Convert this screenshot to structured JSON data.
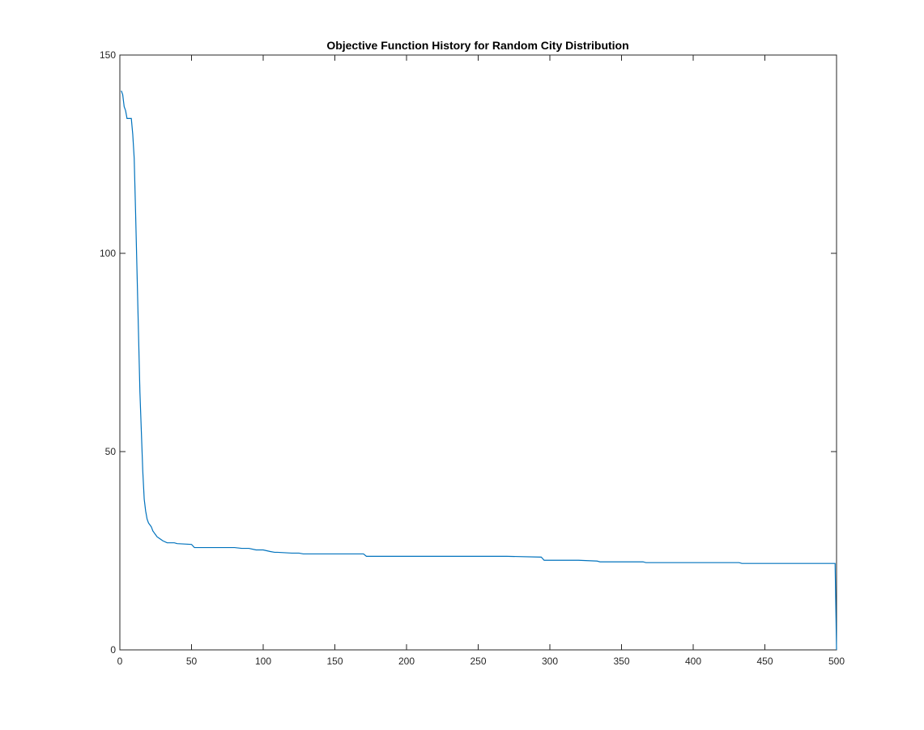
{
  "chart_data": {
    "type": "line",
    "title": "Objective Function History for Random City Distribution",
    "xlabel": "",
    "ylabel": "",
    "xlim": [
      0,
      500
    ],
    "ylim": [
      0,
      150
    ],
    "x_ticks": [
      "0",
      "50",
      "100",
      "150",
      "200",
      "250",
      "300",
      "350",
      "400",
      "450",
      "500"
    ],
    "y_ticks": [
      "0",
      "50",
      "100",
      "150"
    ],
    "grid": false,
    "legend": "none",
    "colors": {
      "line": "#0072BD",
      "axes": "#262626",
      "background": "#ffffff"
    },
    "series": [
      {
        "x": [
          1,
          2,
          3,
          4,
          5,
          6,
          7,
          8,
          9,
          10,
          11,
          12,
          13,
          14,
          15,
          16,
          17,
          18,
          19,
          20,
          21,
          22,
          23,
          24,
          25,
          26,
          28,
          30,
          33,
          38,
          40,
          50,
          52,
          60,
          80,
          85,
          90,
          95,
          100,
          105,
          108,
          110,
          120,
          125,
          128,
          140,
          160,
          170,
          172,
          200,
          250,
          270,
          294,
          296,
          320,
          333,
          335,
          360,
          365,
          367,
          400,
          432,
          434,
          460,
          499,
          500
        ],
        "y": [
          141,
          140,
          137,
          136,
          134,
          134,
          134,
          134,
          130,
          124,
          110,
          95,
          80,
          65,
          55,
          45,
          38,
          35,
          33,
          32,
          31.5,
          31,
          30,
          29.5,
          29,
          28.5,
          28,
          27.5,
          27,
          27,
          26.8,
          26.6,
          25.8,
          25.8,
          25.8,
          25.6,
          25.6,
          25.2,
          25.2,
          24.8,
          24.6,
          24.6,
          24.4,
          24.4,
          24.2,
          24.2,
          24.2,
          24.2,
          23.6,
          23.6,
          23.6,
          23.6,
          23.4,
          22.6,
          22.6,
          22.4,
          22.2,
          22.2,
          22.2,
          22,
          22,
          22,
          21.8,
          21.8,
          21.8,
          0
        ]
      }
    ]
  }
}
